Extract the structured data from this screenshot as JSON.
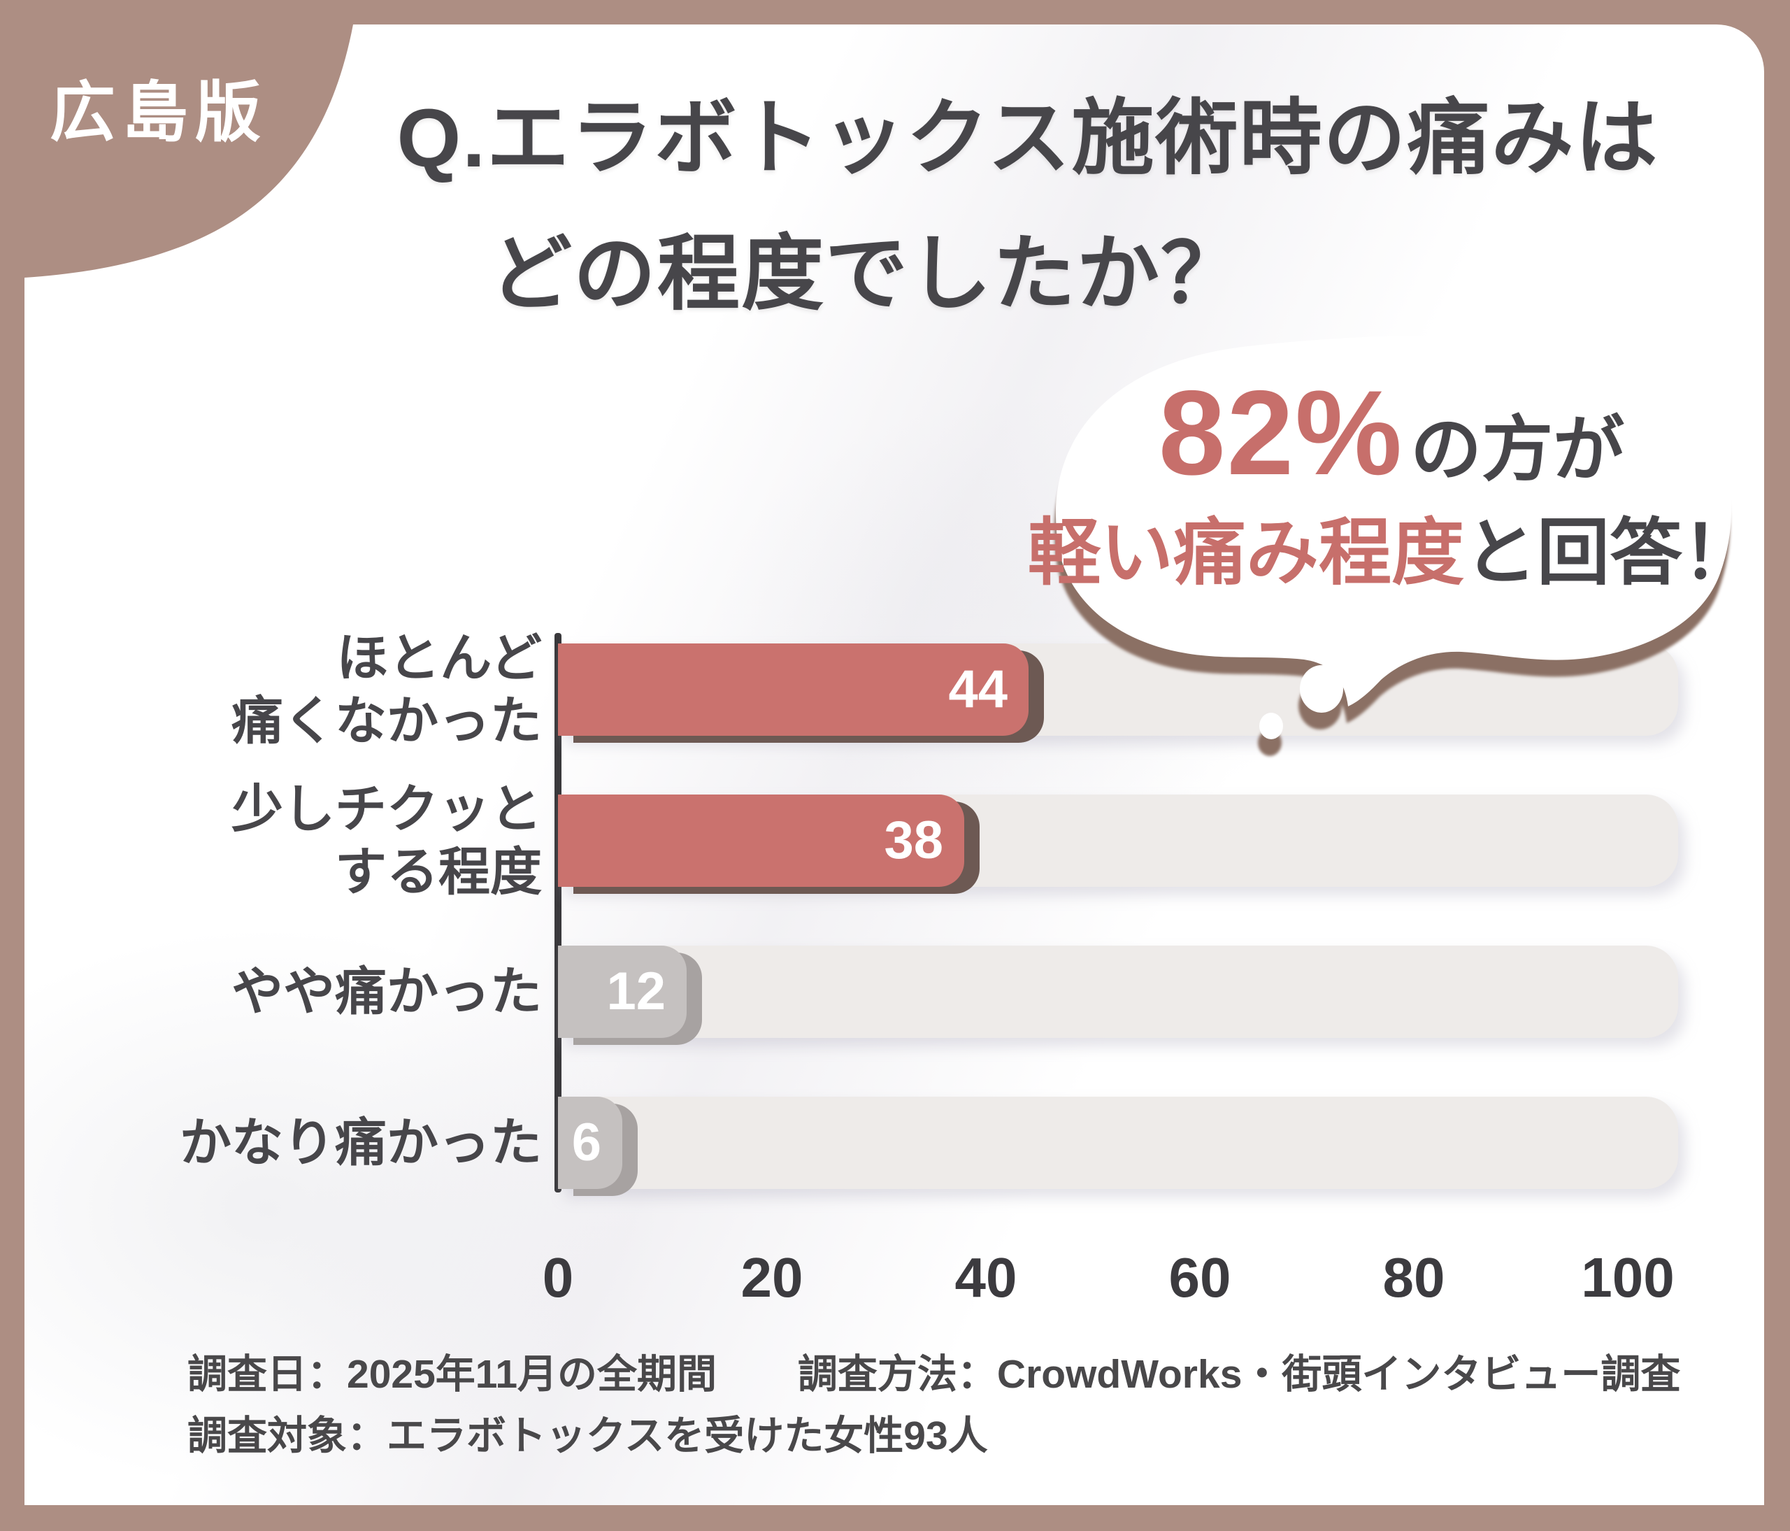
{
  "badge": {
    "label": "広島版"
  },
  "title": {
    "line1": "Q.エラボトックス施術時の痛みは",
    "line2": "どの程度でしたか？"
  },
  "callout": {
    "stat": "82%",
    "stat_suffix": "の方が",
    "highlight": "軽い痛み程度",
    "suffix": "と回答！"
  },
  "chart_data": {
    "type": "bar",
    "orientation": "horizontal",
    "title": "Q.エラボトックス施術時の痛みはどの程度でしたか？",
    "categories": [
      "ほとんど痛くなかった",
      "少しチクッとする程度",
      "やや痛かった",
      "かなり痛かった"
    ],
    "values": [
      44,
      38,
      12,
      6
    ],
    "bar_styles": [
      "accent",
      "accent",
      "muted",
      "muted"
    ],
    "xlabel": "",
    "ylabel": "",
    "xlim": [
      0,
      100
    ],
    "x_ticks": [
      "0",
      "20",
      "40",
      "60",
      "80",
      "100"
    ],
    "grid": false,
    "legend": null,
    "annotation": "82%の方が軽い痛み程度と回答！"
  },
  "chart": {
    "rows": [
      {
        "line1": "ほとんど",
        "line2": "痛くなかった",
        "value": "44"
      },
      {
        "line1": "少しチクッと",
        "line2": "する程度",
        "value": "38"
      },
      {
        "line1": "",
        "line2": "やや痛かった",
        "value": "12"
      },
      {
        "line1": "",
        "line2": "かなり痛かった",
        "value": "6"
      }
    ],
    "ticks": [
      "0",
      "20",
      "40",
      "60",
      "80",
      "100"
    ]
  },
  "footer": {
    "survey_date": "調査日：2025年11月の全期間",
    "survey_method": "調査方法：CrowdWorks・街頭インタビュー調査",
    "survey_subject": "調査対象：エラボトックスを受けた女性93人"
  },
  "colors": {
    "frame": "#ad8e83",
    "accent_bar": "#ca726e",
    "accent_shadow": "#6d5953",
    "muted_bar": "#c5c1c0",
    "muted_shadow": "#a7a2a1",
    "track": "#eeebe9",
    "text_dark": "#47464a",
    "accent_text": "#c76f6b",
    "bubble_shadow": "#8b7064",
    "axis": "#3a393c"
  }
}
